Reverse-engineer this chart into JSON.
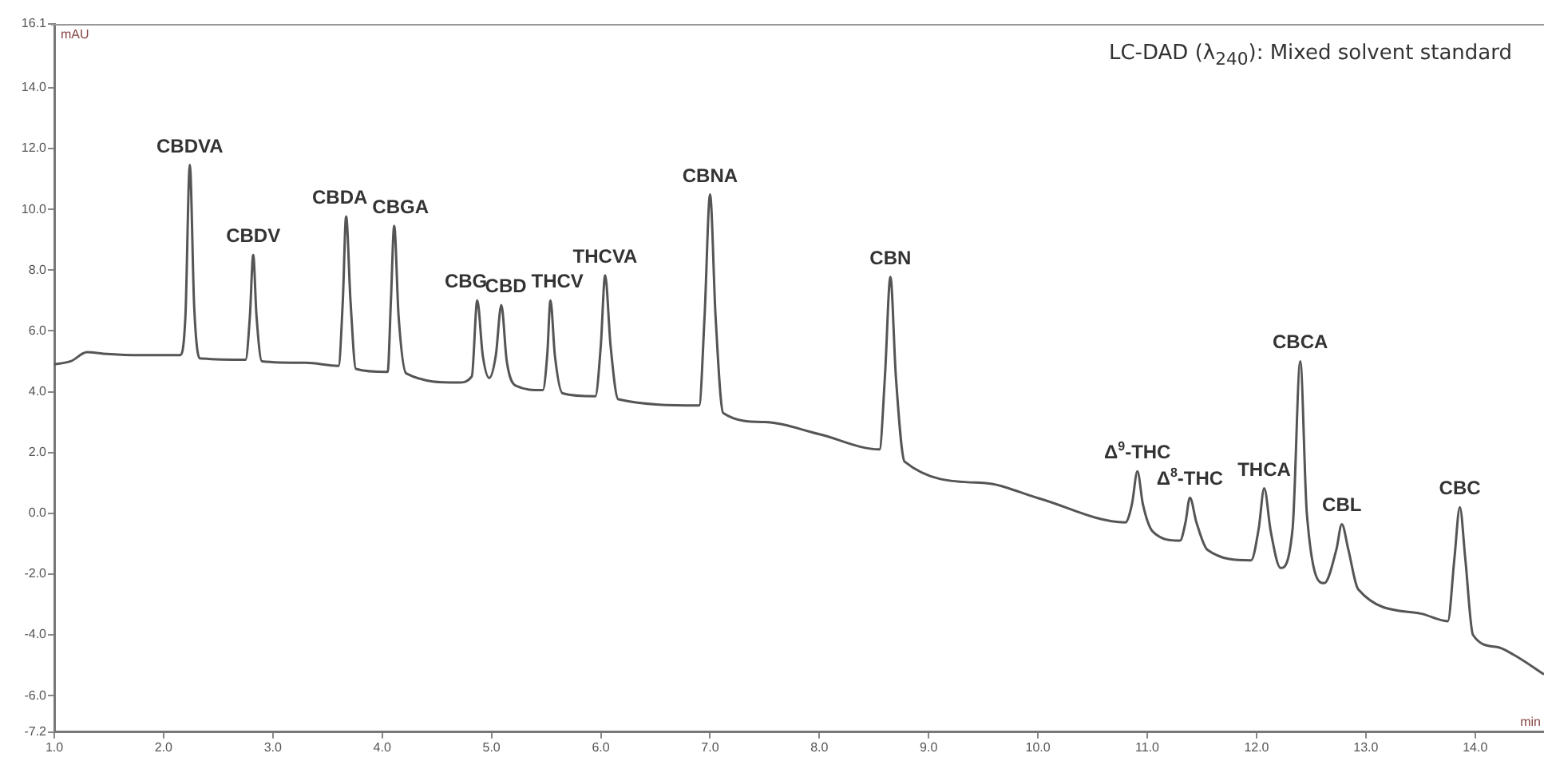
{
  "chart_data": {
    "type": "line",
    "title": "LC-DAD (λ$_{240}$): Mixed solvent standard",
    "xlabel": "min",
    "ylabel": "mAU",
    "xlim": [
      1.0,
      14.63
    ],
    "ylim": [
      -7.2,
      16.1
    ],
    "xticks": [
      {
        "value": 1,
        "label": "1.0"
      },
      {
        "value": 2,
        "label": "2.0"
      },
      {
        "value": 3,
        "label": "3.0"
      },
      {
        "value": 4,
        "label": "4.0"
      },
      {
        "value": 5,
        "label": "5.0"
      },
      {
        "value": 6,
        "label": "6.0"
      },
      {
        "value": 7,
        "label": "7.0"
      },
      {
        "value": 8,
        "label": "8.0"
      },
      {
        "value": 9,
        "label": "9.0"
      },
      {
        "value": 10,
        "label": "10.0"
      },
      {
        "value": 11,
        "label": "11.0"
      },
      {
        "value": 12,
        "label": "12.0"
      },
      {
        "value": 13,
        "label": "13.0"
      },
      {
        "value": 14,
        "label": "14.0"
      }
    ],
    "yticks": [
      {
        "value": -7.2,
        "label": "-7.2"
      },
      {
        "value": -6,
        "label": "-6.0"
      },
      {
        "value": -4,
        "label": "-4.0"
      },
      {
        "value": -2,
        "label": "-2.0"
      },
      {
        "value": 0,
        "label": "0.0"
      },
      {
        "value": 2,
        "label": "2.0"
      },
      {
        "value": 4,
        "label": "4.0"
      },
      {
        "value": 6,
        "label": "6.0"
      },
      {
        "value": 8,
        "label": "8.0"
      },
      {
        "value": 10,
        "label": "10.0"
      },
      {
        "value": 12,
        "label": "12.0"
      },
      {
        "value": 14,
        "label": "14.0"
      },
      {
        "value": 16.1,
        "label": "16.1"
      }
    ],
    "grid": false,
    "legend": false,
    "marker": "none",
    "line_style": "solid",
    "series": [
      {
        "color": "#555555",
        "x": [
          1.0,
          1.15,
          1.3,
          1.45,
          1.8,
          2.15,
          2.2,
          2.24,
          2.28,
          2.33,
          2.75,
          2.79,
          2.82,
          2.85,
          2.9,
          3.3,
          3.6,
          3.64,
          3.67,
          3.71,
          3.76,
          4.05,
          4.08,
          4.11,
          4.15,
          4.22,
          4.7,
          4.82,
          4.87,
          4.92,
          4.98,
          5.04,
          5.09,
          5.14,
          5.22,
          5.47,
          5.51,
          5.54,
          5.58,
          5.65,
          5.95,
          6.0,
          6.04,
          6.09,
          6.16,
          6.9,
          6.95,
          7.0,
          7.05,
          7.12,
          7.5,
          8.0,
          8.55,
          8.6,
          8.65,
          8.7,
          8.78,
          9.5,
          10.0,
          10.8,
          10.86,
          10.91,
          10.96,
          11.05,
          11.3,
          11.35,
          11.39,
          11.45,
          11.55,
          11.95,
          12.02,
          12.07,
          12.13,
          12.22,
          12.33,
          12.4,
          12.46,
          12.62,
          12.73,
          12.78,
          12.84,
          12.93,
          13.5,
          13.75,
          13.81,
          13.86,
          13.91,
          13.98,
          14.2,
          14.35,
          14.63
        ],
        "values": [
          4.9,
          5.0,
          5.3,
          5.25,
          5.2,
          5.2,
          6.5,
          11.46,
          6.8,
          5.1,
          5.05,
          6.5,
          8.5,
          6.5,
          5.0,
          4.95,
          4.85,
          7.0,
          9.77,
          7.0,
          4.75,
          4.65,
          7.0,
          9.46,
          6.5,
          4.6,
          4.3,
          4.5,
          7.0,
          5.2,
          4.45,
          5.2,
          6.85,
          5.0,
          4.2,
          4.05,
          5.2,
          7.0,
          5.2,
          3.95,
          3.85,
          5.5,
          7.83,
          5.5,
          3.75,
          3.55,
          6.5,
          10.49,
          6.5,
          3.3,
          3.0,
          2.6,
          2.1,
          4.5,
          7.78,
          4.5,
          1.7,
          1.0,
          0.5,
          -0.3,
          0.3,
          1.38,
          0.3,
          -0.6,
          -0.9,
          -0.3,
          0.51,
          -0.3,
          -1.2,
          -1.55,
          -0.5,
          0.82,
          -0.6,
          -1.8,
          -0.5,
          5.0,
          0.0,
          -2.3,
          -1.2,
          -0.36,
          -1.2,
          -2.5,
          -3.3,
          -3.55,
          -1.5,
          0.2,
          -1.5,
          -4.0,
          -4.4,
          -4.65,
          -5.3
        ]
      }
    ],
    "annotations": [
      {
        "text": "CBDVA",
        "x": 2.24,
        "y": 11.46
      },
      {
        "text": "CBDV",
        "x": 2.82,
        "y": 8.5
      },
      {
        "text": "CBDA",
        "x": 3.67,
        "y": 9.77
      },
      {
        "text": "CBGA",
        "x": 4.11,
        "y": 9.46
      },
      {
        "text": "CBG",
        "x": 4.87,
        "y": 7.0
      },
      {
        "text": "CBD",
        "x": 5.09,
        "y": 6.85
      },
      {
        "text": "THCV",
        "x": 5.54,
        "y": 7.0
      },
      {
        "text": "THCVA",
        "x": 6.04,
        "y": 7.83
      },
      {
        "text": "CBNA",
        "x": 7.0,
        "y": 10.49
      },
      {
        "text": "CBN",
        "x": 8.65,
        "y": 7.78
      },
      {
        "text": "Δ$^{9}$-THC",
        "x": 10.91,
        "y": 1.38
      },
      {
        "text": "Δ$^{8}$-THC",
        "x": 11.39,
        "y": 0.51
      },
      {
        "text": "THCA",
        "x": 12.07,
        "y": 0.82
      },
      {
        "text": "CBCA",
        "x": 12.4,
        "y": 5.0
      },
      {
        "text": "CBL",
        "x": 12.78,
        "y": -0.36
      },
      {
        "text": "CBC",
        "x": 13.86,
        "y": 0.2
      }
    ]
  }
}
